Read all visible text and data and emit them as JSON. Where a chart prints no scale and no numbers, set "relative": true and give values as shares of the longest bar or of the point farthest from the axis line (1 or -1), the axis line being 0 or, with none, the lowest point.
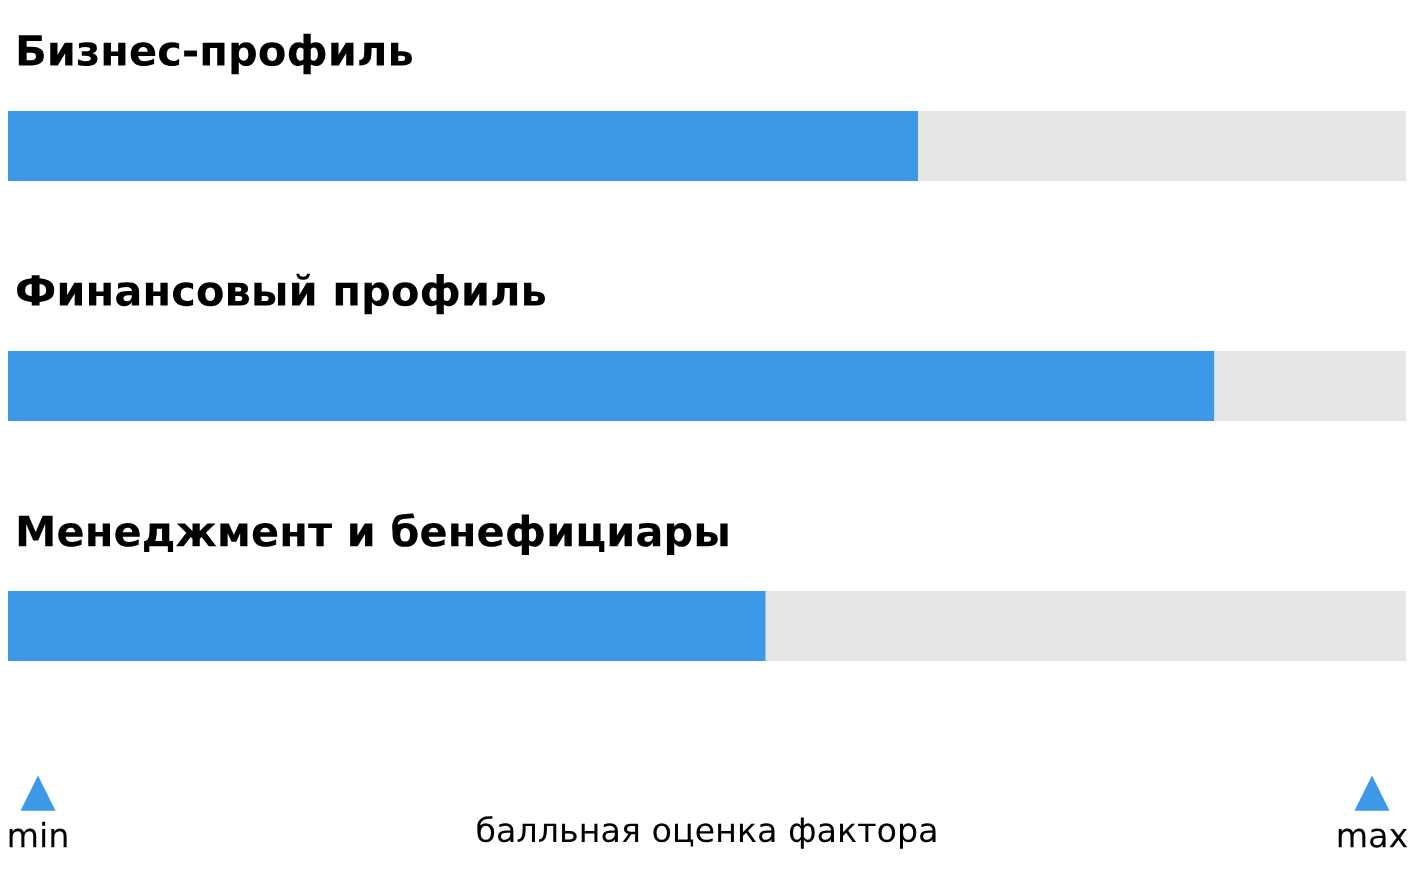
{
  "chart_data": {
    "type": "bar",
    "orientation": "horizontal",
    "stacked": true,
    "relative": true,
    "categories": [
      "Бизнес-профиль",
      "Финансовый профиль",
      "Менеджмент и бенефициары"
    ],
    "series": [
      {
        "color": "#3d99e8",
        "values": [
          0.651,
          0.863,
          0.542
        ]
      },
      {
        "color": "#e6e6e6",
        "values": [
          0.349,
          0.137,
          0.458
        ]
      }
    ],
    "xlabel": "балльная оценка фактора",
    "annotations": [
      "min",
      "max"
    ],
    "legend": false
  }
}
